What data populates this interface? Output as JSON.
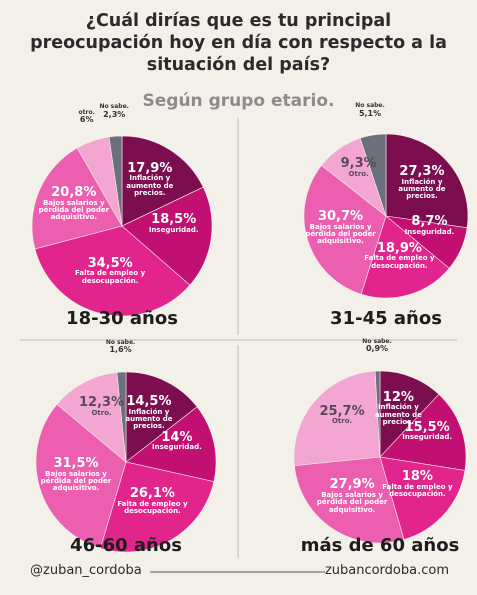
{
  "title": "¿Cuál dirías que es tu principal preocupación hoy en día con respecto a la situación del país?",
  "subtitle": "Según grupo etario.",
  "footer": {
    "handle": "@zuban_cordoba",
    "url": "zubancordoba.com"
  },
  "chart_data": [
    {
      "type": "pie",
      "title": "18-30 años",
      "categories": [
        "Inflación y aumento de precios.",
        "Inseguridad.",
        "Falta de empleo y desocupación.",
        "Bajos salarios y pérdida del poder adquisitivo.",
        "otro.",
        "No sabe."
      ],
      "values": [
        17.9,
        18.5,
        34.5,
        20.8,
        6,
        2.3
      ],
      "value_labels": [
        "17,9%",
        "18,5%",
        "34,5%",
        "20,8%",
        "6%",
        "2,3%"
      ],
      "colors": [
        "#7c0d4e",
        "#c20f72",
        "#e1258c",
        "#ec5fb0",
        "#f2a6d1",
        "#6c707c"
      ]
    },
    {
      "type": "pie",
      "title": "31-45 años",
      "categories": [
        "Inflación y aumento de precios.",
        "Inseguridad.",
        "Falta de empleo y desocupación.",
        "Bajos salarios y pérdida del poder adquisitivo.",
        "Otro.",
        "No sabe."
      ],
      "values": [
        27.3,
        8.7,
        18.9,
        30.7,
        9.3,
        5.1
      ],
      "value_labels": [
        "27,3%",
        "8,7%",
        "18,9%",
        "30,7%",
        "9,3%",
        "5,1%"
      ],
      "colors": [
        "#7c0d4e",
        "#c20f72",
        "#e1258c",
        "#ec5fb0",
        "#f2a6d1",
        "#6c707c"
      ]
    },
    {
      "type": "pie",
      "title": "46-60 años",
      "categories": [
        "Inflación y aumento de precios.",
        "Inseguridad.",
        "Falta de empleo y desocupación.",
        "Bajos salarios y pérdida del poder adquisitivo.",
        "Otro.",
        "No sabe."
      ],
      "values": [
        14.5,
        14,
        26.1,
        31.5,
        12.3,
        1.6
      ],
      "value_labels": [
        "14,5%",
        "14%",
        "26,1%",
        "31,5%",
        "12,3%",
        "1,6%"
      ],
      "colors": [
        "#7c0d4e",
        "#c20f72",
        "#e1258c",
        "#ec5fb0",
        "#f2a6d1",
        "#6c707c"
      ]
    },
    {
      "type": "pie",
      "title": "más de 60 años",
      "categories": [
        "Inflación y aumento de precios.",
        "Inseguridad.",
        "Falta de empleo y desocupación.",
        "Bajos salarios y pérdida del poder adquisitivo.",
        "Otro.",
        "No sabe."
      ],
      "values": [
        12,
        15.5,
        18,
        27.9,
        25.7,
        0.9
      ],
      "value_labels": [
        "12%",
        "15,5%",
        "18%",
        "27,9%",
        "25,7%",
        "0,9%"
      ],
      "colors": [
        "#7c0d4e",
        "#c20f72",
        "#e1258c",
        "#ec5fb0",
        "#f2a6d1",
        "#6c707c"
      ]
    }
  ]
}
